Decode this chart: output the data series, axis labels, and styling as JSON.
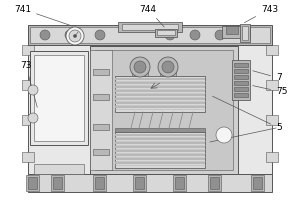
{
  "bg_color": "#ffffff",
  "line_color": "#555555",
  "fill_light": "#d8d8d8",
  "fill_lighter": "#e8e8e8",
  "fill_mid": "#b8b8b8",
  "fill_dark": "#909090",
  "fill_white": "#f5f5f5",
  "label_fontsize": 6.5,
  "fig_width": 3.0,
  "fig_height": 2.0,
  "dpi": 100,
  "lw_main": 0.7,
  "lw_thin": 0.4,
  "lw_med": 0.55
}
